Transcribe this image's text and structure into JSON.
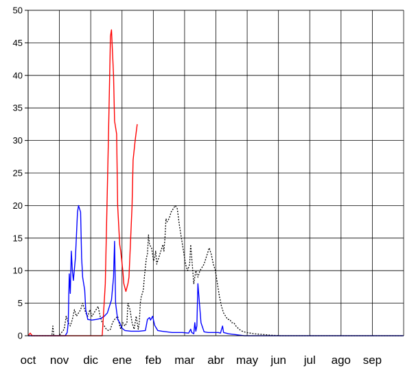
{
  "chart_data": {
    "type": "line",
    "title": "",
    "xlabel": "",
    "ylabel": "",
    "ylim": [
      0,
      50
    ],
    "yticks": [
      0,
      5,
      10,
      15,
      20,
      25,
      30,
      35,
      40,
      45,
      50
    ],
    "xlim": [
      0,
      365
    ],
    "categories": [
      "oct",
      "nov",
      "dic",
      "ene",
      "feb",
      "mar",
      "abr",
      "may",
      "jun",
      "jul",
      "ago",
      "sep"
    ],
    "grid": true,
    "legend": "none",
    "series": [
      {
        "color": "#ff0000",
        "style": "solid",
        "points": [
          [
            0,
            0
          ],
          [
            2,
            0.4
          ],
          [
            4,
            0
          ],
          [
            60,
            0
          ],
          [
            72,
            0
          ],
          [
            75,
            8
          ],
          [
            78,
            30
          ],
          [
            80,
            46
          ],
          [
            81,
            47
          ],
          [
            83,
            40
          ],
          [
            84,
            33
          ],
          [
            86,
            31
          ],
          [
            87,
            20
          ],
          [
            89,
            14
          ],
          [
            90,
            13
          ],
          [
            92,
            10
          ],
          [
            93,
            8
          ],
          [
            95,
            6.8
          ],
          [
            97,
            8
          ],
          [
            98,
            9
          ],
          [
            101,
            20
          ],
          [
            102,
            27
          ],
          [
            104,
            30
          ],
          [
            106,
            32.5
          ]
        ]
      },
      {
        "color": "#0000ff",
        "style": "solid",
        "points": [
          [
            0,
            0
          ],
          [
            30,
            0
          ],
          [
            36,
            0
          ],
          [
            38,
            0.5
          ],
          [
            39,
            2
          ],
          [
            40,
            9.5
          ],
          [
            41,
            6.5
          ],
          [
            42,
            13
          ],
          [
            43,
            10
          ],
          [
            44,
            8.5
          ],
          [
            46,
            12
          ],
          [
            48,
            19
          ],
          [
            49,
            20
          ],
          [
            51,
            19
          ],
          [
            52,
            12
          ],
          [
            53,
            9
          ],
          [
            55,
            7
          ],
          [
            56,
            4
          ],
          [
            58,
            2.5
          ],
          [
            62,
            2.4
          ],
          [
            66,
            2.5
          ],
          [
            69,
            2.6
          ],
          [
            71,
            2.7
          ],
          [
            74,
            3
          ],
          [
            77,
            3.5
          ],
          [
            79,
            4.5
          ],
          [
            81,
            5.5
          ],
          [
            83,
            9
          ],
          [
            84,
            14.5
          ],
          [
            85,
            5
          ],
          [
            87,
            2.5
          ],
          [
            89,
            2
          ],
          [
            91,
            1.2
          ],
          [
            94,
            0.8
          ],
          [
            100,
            0.7
          ],
          [
            108,
            0.7
          ],
          [
            114,
            0.8
          ],
          [
            116,
            2.5
          ],
          [
            118,
            2.8
          ],
          [
            119,
            2.4
          ],
          [
            120,
            2.7
          ],
          [
            121,
            3
          ],
          [
            123,
            1.6
          ],
          [
            126,
            0.8
          ],
          [
            130,
            0.7
          ],
          [
            140,
            0.5
          ],
          [
            150,
            0.5
          ],
          [
            156,
            0.4
          ],
          [
            158,
            1
          ],
          [
            159,
            0.5
          ],
          [
            161,
            0.3
          ],
          [
            162,
            2
          ],
          [
            163,
            0.7
          ],
          [
            164,
            1.5
          ],
          [
            165,
            8
          ],
          [
            166,
            6
          ],
          [
            168,
            2
          ],
          [
            171,
            0.6
          ],
          [
            175,
            0.5
          ],
          [
            185,
            0.5
          ],
          [
            187,
            0.4
          ],
          [
            189,
            1.5
          ],
          [
            190,
            0.5
          ],
          [
            195,
            0.3
          ],
          [
            200,
            0.2
          ],
          [
            205,
            0.1
          ],
          [
            210,
            0
          ],
          [
            365,
            0
          ]
        ]
      },
      {
        "color": "#000000",
        "style": "dotted",
        "points": [
          [
            0,
            0
          ],
          [
            23,
            0
          ],
          [
            24,
            1.5
          ],
          [
            25,
            0
          ],
          [
            30,
            0
          ],
          [
            35,
            1
          ],
          [
            37,
            3
          ],
          [
            39,
            2
          ],
          [
            41,
            1.5
          ],
          [
            43,
            2.5
          ],
          [
            45,
            4
          ],
          [
            47,
            3
          ],
          [
            49,
            3.5
          ],
          [
            51,
            4
          ],
          [
            53,
            5
          ],
          [
            54,
            4.5
          ],
          [
            56,
            3.5
          ],
          [
            58,
            3
          ],
          [
            60,
            4
          ],
          [
            62,
            3
          ],
          [
            64,
            3.5
          ],
          [
            66,
            4
          ],
          [
            68,
            4.5
          ],
          [
            70,
            3
          ],
          [
            72,
            2
          ],
          [
            74,
            1.5
          ],
          [
            76,
            1
          ],
          [
            78,
            0.8
          ],
          [
            80,
            1
          ],
          [
            82,
            2
          ],
          [
            84,
            2.5
          ],
          [
            87,
            3
          ],
          [
            89,
            1.5
          ],
          [
            90,
            1
          ],
          [
            92,
            2
          ],
          [
            94,
            1.5
          ],
          [
            96,
            2
          ],
          [
            97,
            5
          ],
          [
            99,
            4
          ],
          [
            101,
            2
          ],
          [
            103,
            1
          ],
          [
            105,
            3
          ],
          [
            107,
            1
          ],
          [
            108,
            2
          ],
          [
            109,
            5
          ],
          [
            110,
            6
          ],
          [
            112,
            7
          ],
          [
            113,
            9
          ],
          [
            115,
            12
          ],
          [
            116,
            12.5
          ],
          [
            117,
            15.5
          ],
          [
            118,
            14
          ],
          [
            120,
            13.5
          ],
          [
            122,
            11.5
          ],
          [
            123,
            12
          ],
          [
            124,
            13
          ],
          [
            125,
            11
          ],
          [
            127,
            12
          ],
          [
            129,
            13
          ],
          [
            131,
            14
          ],
          [
            132,
            13
          ],
          [
            133,
            15
          ],
          [
            134,
            18
          ],
          [
            135,
            17.5
          ],
          [
            137,
            18
          ],
          [
            139,
            19
          ],
          [
            141,
            19.5
          ],
          [
            143,
            20
          ],
          [
            145,
            19.5
          ],
          [
            147,
            17
          ],
          [
            149,
            15
          ],
          [
            151,
            13
          ],
          [
            153,
            11
          ],
          [
            155,
            10
          ],
          [
            157,
            11
          ],
          [
            158,
            14
          ],
          [
            159,
            12
          ],
          [
            160,
            10
          ],
          [
            161,
            8
          ],
          [
            162,
            9
          ],
          [
            163,
            10
          ],
          [
            165,
            9
          ],
          [
            167,
            10
          ],
          [
            169,
            10.5
          ],
          [
            171,
            11
          ],
          [
            173,
            12
          ],
          [
            175,
            13
          ],
          [
            176,
            13.5
          ],
          [
            178,
            12.5
          ],
          [
            180,
            11
          ],
          [
            182,
            10
          ],
          [
            184,
            8
          ],
          [
            186,
            6
          ],
          [
            188,
            4.5
          ],
          [
            190,
            3.5
          ],
          [
            192,
            3
          ],
          [
            194,
            2.5
          ],
          [
            196,
            2.5
          ],
          [
            198,
            2
          ],
          [
            200,
            2
          ],
          [
            202,
            1.5
          ],
          [
            205,
            1
          ],
          [
            208,
            0.7
          ],
          [
            212,
            0.5
          ],
          [
            216,
            0.4
          ],
          [
            220,
            0.3
          ],
          [
            228,
            0.2
          ],
          [
            235,
            0.1
          ],
          [
            245,
            0
          ],
          [
            365,
            0
          ]
        ]
      }
    ]
  }
}
